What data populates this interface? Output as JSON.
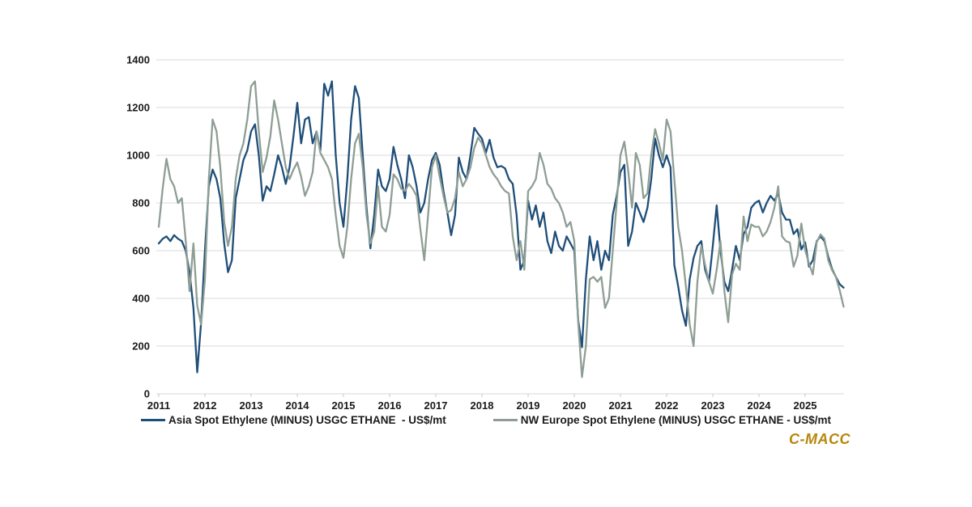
{
  "page": {
    "background": "#FFFFFF"
  },
  "colors": {
    "gridline": "#D9D9D9",
    "tick": "#C6C6C6",
    "axis_text": "#1A1A1A"
  },
  "logo": {
    "text": "C-MACC",
    "color": "#B8860B"
  },
  "chart_data": {
    "type": "line",
    "title": "",
    "xlabel": "",
    "ylabel": "",
    "frequency": "monthly",
    "start": "2011-01",
    "end": "2025-11",
    "grid": true,
    "legend_position": "bottom",
    "y_axis": {
      "min": 0,
      "max": 1400,
      "step": 200,
      "tick_labels": [
        "0",
        "200",
        "400",
        "600",
        "800",
        "1000",
        "1200",
        "1400"
      ]
    },
    "x_axis": {
      "tick_labels": [
        "2011",
        "2012",
        "2013",
        "2014",
        "2015",
        "2016",
        "2017",
        "2018",
        "2019",
        "2020",
        "2021",
        "2022",
        "2023",
        "2024",
        "2025"
      ]
    },
    "series": [
      {
        "name": "Asia Spot Ethylene (MINUS) USGC ETHANE  - US$/mt",
        "color": "#1F4E79",
        "values": [
          630,
          650,
          660,
          640,
          665,
          650,
          640,
          600,
          510,
          360,
          90,
          300,
          600,
          870,
          940,
          900,
          820,
          630,
          510,
          560,
          820,
          900,
          980,
          1020,
          1100,
          1130,
          1000,
          810,
          870,
          850,
          920,
          1000,
          950,
          880,
          950,
          1080,
          1220,
          1050,
          1150,
          1160,
          1050,
          1100,
          1020,
          1300,
          1250,
          1310,
          1000,
          800,
          700,
          900,
          1150,
          1290,
          1240,
          1000,
          780,
          610,
          750,
          940,
          870,
          850,
          900,
          1035,
          960,
          900,
          820,
          1000,
          950,
          870,
          760,
          800,
          900,
          980,
          1010,
          960,
          850,
          760,
          665,
          750,
          990,
          930,
          900,
          1000,
          1115,
          1090,
          1070,
          1010,
          1065,
          990,
          950,
          955,
          945,
          900,
          880,
          750,
          520,
          560,
          810,
          730,
          790,
          700,
          760,
          640,
          590,
          680,
          620,
          600,
          660,
          630,
          600,
          310,
          195,
          480,
          660,
          560,
          640,
          520,
          600,
          560,
          750,
          830,
          930,
          960,
          620,
          680,
          800,
          760,
          720,
          780,
          900,
          1070,
          1000,
          950,
          1000,
          950,
          540,
          450,
          350,
          285,
          480,
          570,
          620,
          640,
          520,
          470,
          620,
          790,
          600,
          470,
          430,
          520,
          620,
          560,
          670,
          700,
          780,
          800,
          810,
          760,
          800,
          830,
          810,
          840,
          760,
          730,
          730,
          670,
          690,
          605,
          635,
          533,
          560,
          640,
          660,
          640,
          575,
          523,
          490,
          459,
          445
        ]
      },
      {
        "name": "NW Europe Spot Ethylene (MINUS) USGC ETHANE - US$/mt",
        "color": "#8E9E94",
        "values": [
          700,
          860,
          985,
          900,
          870,
          800,
          820,
          640,
          430,
          630,
          370,
          290,
          480,
          900,
          1150,
          1100,
          950,
          720,
          620,
          700,
          900,
          1000,
          1050,
          1150,
          1290,
          1310,
          1100,
          930,
          990,
          1080,
          1230,
          1150,
          1050,
          950,
          900,
          940,
          970,
          910,
          830,
          870,
          930,
          1100,
          1010,
          980,
          950,
          900,
          750,
          620,
          570,
          700,
          900,
          1050,
          1090,
          950,
          750,
          630,
          680,
          870,
          700,
          680,
          750,
          920,
          900,
          860,
          850,
          880,
          860,
          830,
          690,
          560,
          750,
          950,
          1000,
          910,
          830,
          760,
          770,
          820,
          930,
          870,
          900,
          950,
          1030,
          1074,
          1050,
          1000,
          950,
          920,
          900,
          870,
          850,
          840,
          660,
          560,
          640,
          520,
          850,
          870,
          900,
          1010,
          960,
          880,
          860,
          820,
          800,
          760,
          700,
          720,
          640,
          300,
          70,
          200,
          480,
          490,
          470,
          490,
          360,
          400,
          600,
          800,
          1000,
          1057,
          937,
          780,
          1010,
          960,
          820,
          840,
          1000,
          1110,
          1050,
          980,
          1150,
          1100,
          900,
          700,
          600,
          450,
          290,
          200,
          470,
          620,
          540,
          470,
          420,
          520,
          640,
          430,
          300,
          500,
          545,
          520,
          743,
          640,
          710,
          700,
          700,
          660,
          680,
          720,
          780,
          870,
          660,
          640,
          634,
          533,
          580,
          714,
          603,
          546,
          500,
          636,
          668,
          650,
          560,
          518,
          490,
          432,
          365
        ]
      }
    ]
  }
}
